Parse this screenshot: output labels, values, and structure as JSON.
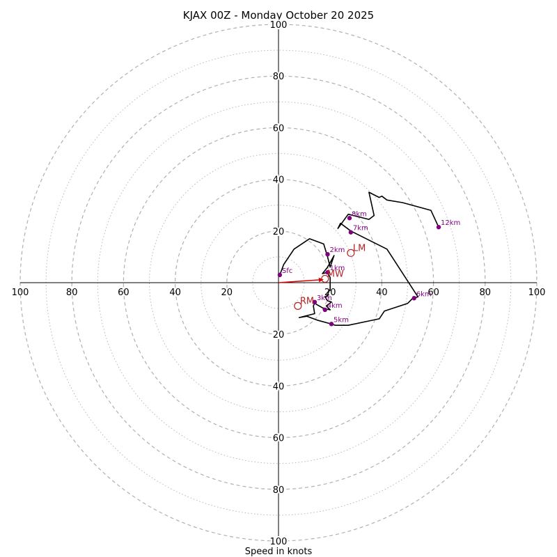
{
  "chart_data": {
    "type": "hodograph",
    "title": "KJAX 00Z - Monday October 20 2025",
    "xlabel": "Speed in knots",
    "range": 100,
    "ring_major_step": 20,
    "ring_minor_step": 10,
    "tick_values": [
      20,
      40,
      60,
      80,
      100
    ],
    "colors": {
      "trace": "#000000",
      "height_marker": "#800080",
      "storm_motion": "#b22222",
      "mean_wind_vector": "#dd0000",
      "grid": "#b0b0b0"
    },
    "trace": [
      [
        0.5,
        3
      ],
      [
        2,
        7
      ],
      [
        6,
        13
      ],
      [
        12,
        17
      ],
      [
        17.5,
        15
      ],
      [
        19,
        10
      ],
      [
        20,
        6
      ],
      [
        21.5,
        10.5
      ],
      [
        19,
        6
      ],
      [
        17,
        3.5
      ],
      [
        19,
        4
      ],
      [
        20,
        2
      ],
      [
        20,
        -3
      ],
      [
        19.5,
        -3
      ],
      [
        19,
        -5
      ],
      [
        18,
        -5.5
      ],
      [
        19,
        -7
      ],
      [
        20.5,
        -7.5
      ],
      [
        18.5,
        -9
      ],
      [
        20,
        -10.5
      ],
      [
        17.5,
        -10
      ],
      [
        14,
        -8
      ],
      [
        13.5,
        -9
      ],
      [
        14,
        -12
      ],
      [
        8,
        -13.5
      ],
      [
        11,
        -13
      ],
      [
        15,
        -14.5
      ],
      [
        20.5,
        -16
      ],
      [
        22,
        -16.5
      ],
      [
        27,
        -16.5
      ],
      [
        39,
        -14
      ],
      [
        41,
        -11
      ],
      [
        50,
        -8
      ],
      [
        52,
        -6
      ],
      [
        54,
        -5.5
      ],
      [
        42,
        13
      ],
      [
        28,
        20
      ],
      [
        24,
        23
      ],
      [
        23,
        21
      ],
      [
        27,
        26.5
      ],
      [
        35,
        24.5
      ],
      [
        37,
        26
      ],
      [
        35,
        35
      ],
      [
        39,
        33
      ],
      [
        40,
        33.5
      ],
      [
        42,
        32
      ],
      [
        48,
        31
      ],
      [
        59,
        28
      ],
      [
        62,
        21.5
      ]
    ],
    "heights": [
      {
        "label": "Sfc",
        "x": 0.5,
        "y": 3
      },
      {
        "label": "1km",
        "x": 19,
        "y": 4
      },
      {
        "label": "2km",
        "x": 19,
        "y": 11
      },
      {
        "label": "3km",
        "x": 14,
        "y": -7.5
      },
      {
        "label": "4km",
        "x": 18,
        "y": -10.5
      },
      {
        "label": "5km",
        "x": 20.5,
        "y": -16
      },
      {
        "label": "6km",
        "x": 52.5,
        "y": -6
      },
      {
        "label": "7km",
        "x": 28,
        "y": 19.5
      },
      {
        "label": "8km",
        "x": 27.5,
        "y": 25
      },
      {
        "label": "12km",
        "x": 62,
        "y": 21.5
      }
    ],
    "storm_motion": [
      {
        "label": "LM",
        "x": 28,
        "y": 11.5
      },
      {
        "label": "RM",
        "x": 7.5,
        "y": -9
      },
      {
        "label": "MW",
        "x": 18,
        "y": 1.5
      }
    ],
    "mean_wind_vector": {
      "x": 17.5,
      "y": 1.2
    }
  }
}
